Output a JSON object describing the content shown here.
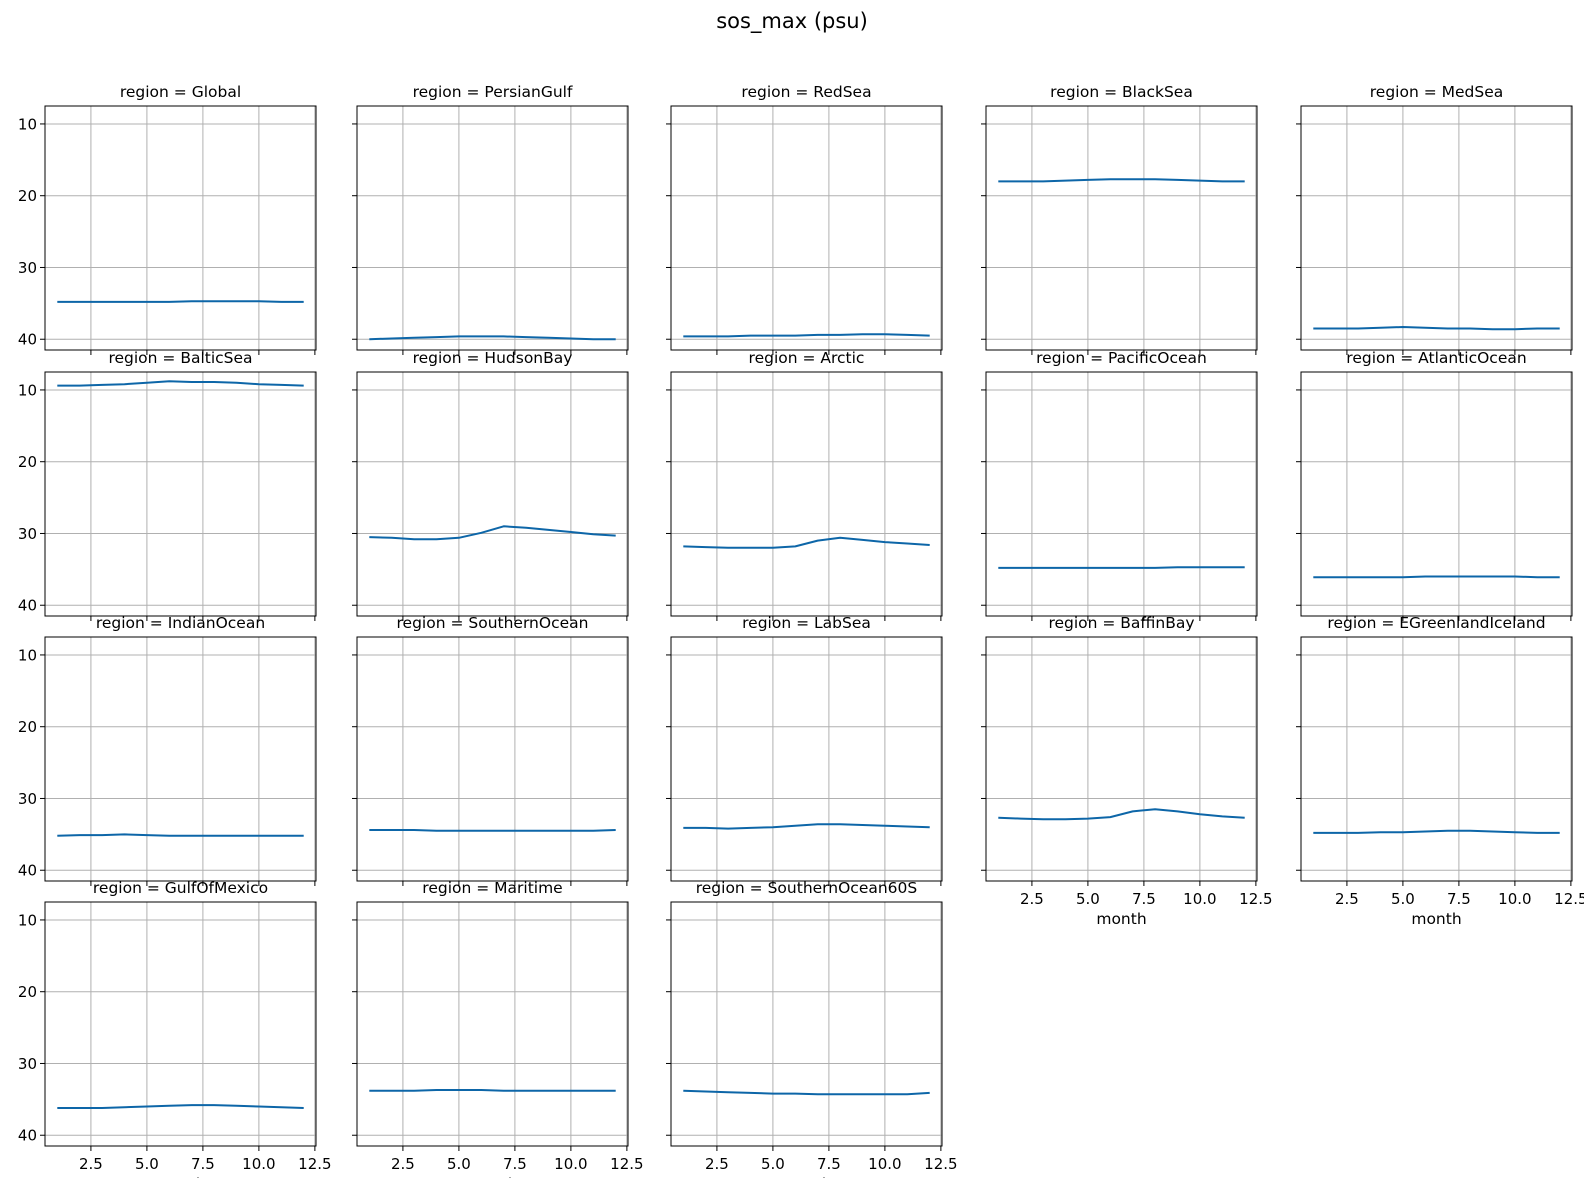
{
  "chart_data": {
    "type": "line",
    "title": "sos_max (psu)",
    "xlabel": "month",
    "ylabel": "",
    "ylim": [
      41.5,
      7.5
    ],
    "y_inverted": true,
    "xlim": [
      0.45,
      12.55
    ],
    "xticks": [
      "2.5",
      "5.0",
      "7.5",
      "10.0",
      "12.5"
    ],
    "yticks": [
      "10",
      "20",
      "30",
      "40"
    ],
    "grid": true,
    "line_color": "#0d66a8",
    "x": [
      1,
      2,
      3,
      4,
      5,
      6,
      7,
      8,
      9,
      10,
      11,
      12
    ],
    "panels": [
      {
        "title": "region = Global",
        "values": [
          34.8,
          34.8,
          34.8,
          34.8,
          34.8,
          34.8,
          34.7,
          34.7,
          34.7,
          34.7,
          34.8,
          34.8
        ]
      },
      {
        "title": "region = PersianGulf",
        "values": [
          40.0,
          39.9,
          39.8,
          39.7,
          39.6,
          39.6,
          39.6,
          39.7,
          39.8,
          39.9,
          40.0,
          40.0
        ]
      },
      {
        "title": "region = RedSea",
        "values": [
          39.6,
          39.6,
          39.6,
          39.5,
          39.5,
          39.5,
          39.4,
          39.4,
          39.3,
          39.3,
          39.4,
          39.5
        ]
      },
      {
        "title": "region = BlackSea",
        "values": [
          18.0,
          18.0,
          18.0,
          17.9,
          17.8,
          17.7,
          17.7,
          17.7,
          17.8,
          17.9,
          18.0,
          18.0
        ]
      },
      {
        "title": "region = MedSea",
        "values": [
          38.5,
          38.5,
          38.5,
          38.4,
          38.3,
          38.4,
          38.5,
          38.5,
          38.6,
          38.6,
          38.5,
          38.5
        ]
      },
      {
        "title": "region = BalticSea",
        "values": [
          9.4,
          9.4,
          9.3,
          9.2,
          9.0,
          8.8,
          8.9,
          8.9,
          9.0,
          9.2,
          9.3,
          9.4
        ]
      },
      {
        "title": "region = HudsonBay",
        "values": [
          30.5,
          30.6,
          30.8,
          30.8,
          30.6,
          29.9,
          29.0,
          29.2,
          29.5,
          29.8,
          30.1,
          30.3
        ]
      },
      {
        "title": "region = Arctic",
        "values": [
          31.8,
          31.9,
          32.0,
          32.0,
          32.0,
          31.8,
          31.0,
          30.6,
          30.9,
          31.2,
          31.4,
          31.6
        ]
      },
      {
        "title": "region = PacificOcean",
        "values": [
          34.8,
          34.8,
          34.8,
          34.8,
          34.8,
          34.8,
          34.8,
          34.8,
          34.7,
          34.7,
          34.7,
          34.7
        ]
      },
      {
        "title": "region = AtlanticOcean",
        "values": [
          36.1,
          36.1,
          36.1,
          36.1,
          36.1,
          36.0,
          36.0,
          36.0,
          36.0,
          36.0,
          36.1,
          36.1
        ]
      },
      {
        "title": "region = IndianOcean",
        "values": [
          35.2,
          35.1,
          35.1,
          35.0,
          35.1,
          35.2,
          35.2,
          35.2,
          35.2,
          35.2,
          35.2,
          35.2
        ]
      },
      {
        "title": "region = SouthernOcean",
        "values": [
          34.4,
          34.4,
          34.4,
          34.5,
          34.5,
          34.5,
          34.5,
          34.5,
          34.5,
          34.5,
          34.5,
          34.4
        ]
      },
      {
        "title": "region = LabSea",
        "values": [
          34.1,
          34.1,
          34.2,
          34.1,
          34.0,
          33.8,
          33.6,
          33.6,
          33.7,
          33.8,
          33.9,
          34.0
        ]
      },
      {
        "title": "region = BaffinBay",
        "values": [
          32.7,
          32.8,
          32.9,
          32.9,
          32.8,
          32.6,
          31.8,
          31.5,
          31.8,
          32.2,
          32.5,
          32.7
        ]
      },
      {
        "title": "region = EGreenlandIceland",
        "values": [
          34.8,
          34.8,
          34.8,
          34.7,
          34.7,
          34.6,
          34.5,
          34.5,
          34.6,
          34.7,
          34.8,
          34.8
        ]
      },
      {
        "title": "region = GulfOfMexico",
        "values": [
          36.2,
          36.2,
          36.2,
          36.1,
          36.0,
          35.9,
          35.8,
          35.8,
          35.9,
          36.0,
          36.1,
          36.2
        ]
      },
      {
        "title": "region = Maritime",
        "values": [
          33.8,
          33.8,
          33.8,
          33.7,
          33.7,
          33.7,
          33.8,
          33.8,
          33.8,
          33.8,
          33.8,
          33.8
        ]
      },
      {
        "title": "region = SouthernOcean60S",
        "values": [
          33.8,
          33.9,
          34.0,
          34.1,
          34.2,
          34.2,
          34.3,
          34.3,
          34.3,
          34.3,
          34.3,
          34.1
        ]
      }
    ]
  }
}
